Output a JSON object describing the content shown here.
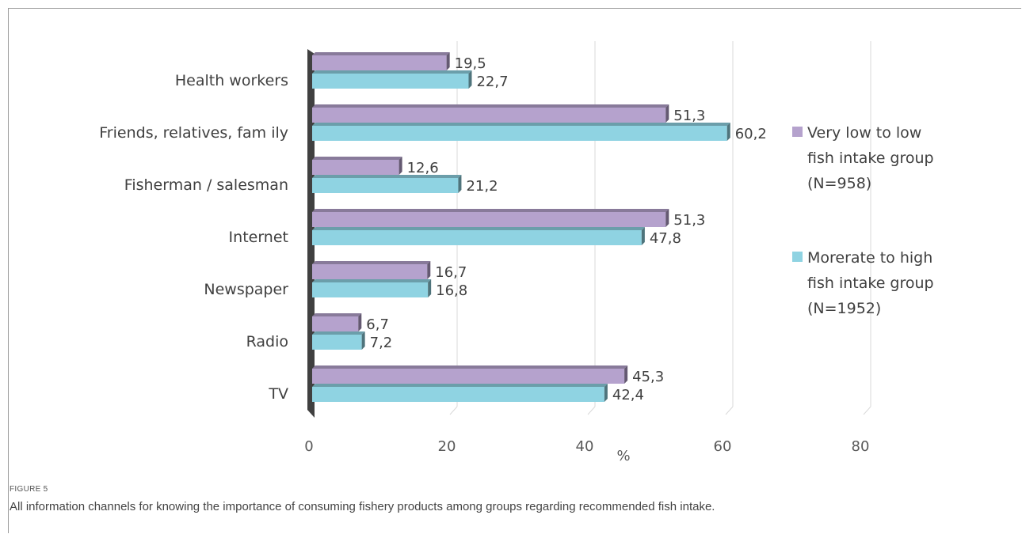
{
  "chart_data": {
    "type": "bar",
    "orientation": "horizontal",
    "categories": [
      "Health workers",
      "Friends, relatives, fam ily",
      "Fisherman / salesman",
      "Internet",
      "Newspaper",
      "Radio",
      "TV"
    ],
    "series": [
      {
        "name": "Very low to low fish intake group (N=958)",
        "legend_lines": [
          "Very low to low",
          "fish intake group",
          "(N=958)"
        ],
        "values": [
          19.5,
          51.3,
          12.6,
          51.3,
          16.7,
          6.7,
          45.3
        ],
        "labels": [
          "19,5",
          "51,3",
          "12,6",
          "51,3",
          "16,7",
          "6,7",
          "45,3"
        ],
        "color": "#b5a2cd"
      },
      {
        "name": "Morerate to high fish intake group (N=1952)",
        "legend_lines": [
          "Morerate to high",
          "fish intake group",
          "(N=1952)"
        ],
        "values": [
          22.7,
          60.2,
          21.2,
          47.8,
          16.8,
          7.2,
          42.4
        ],
        "labels": [
          "22,7",
          "60,2",
          "21,2",
          "47,8",
          "16,8",
          "7,2",
          "42,4"
        ],
        "color": "#8fd3e2"
      }
    ],
    "xticks": [
      "0",
      "20",
      "40",
      "60",
      "80"
    ],
    "xlabel": "%",
    "xlim": [
      0,
      80
    ],
    "grid": true,
    "legend_position": "right"
  },
  "caption": {
    "label": "FIGURE 5",
    "text": "All information channels for knowing the importance of consuming fishery products among groups regarding recommended fish intake."
  }
}
